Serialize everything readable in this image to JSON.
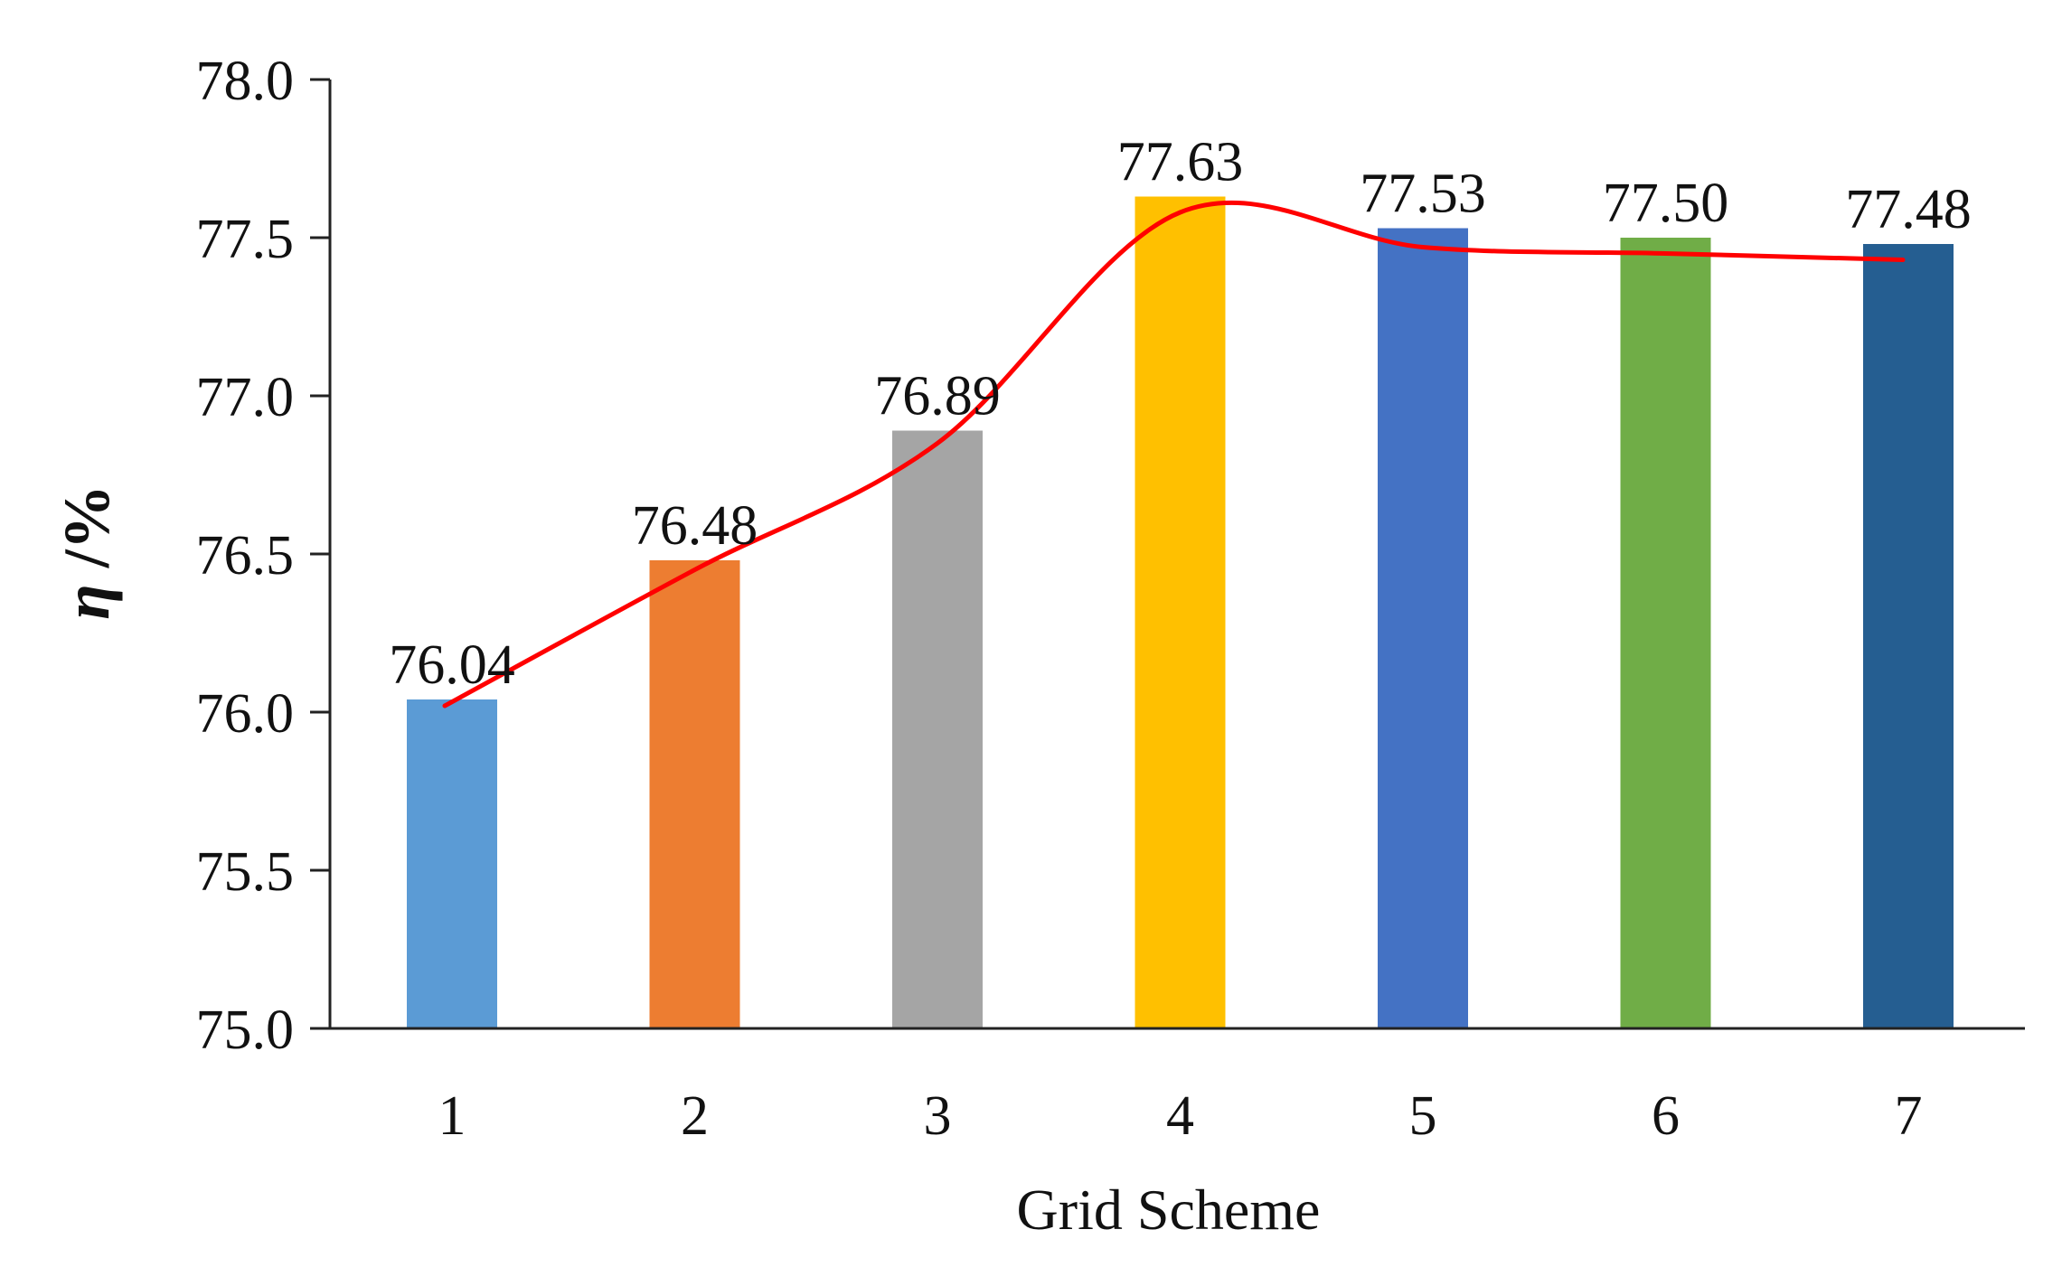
{
  "chart_data": {
    "type": "bar",
    "title": "",
    "xlabel": "Grid Scheme",
    "ylabel_symbol": "η",
    "ylabel_unit": " /%",
    "categories": [
      "1",
      "2",
      "3",
      "4",
      "5",
      "6",
      "7"
    ],
    "values": [
      76.04,
      76.48,
      76.89,
      77.63,
      77.53,
      77.5,
      77.48
    ],
    "value_labels": [
      "76.04",
      "76.48",
      "76.89",
      "77.63",
      "77.53",
      "77.50",
      "77.48"
    ],
    "bar_colors": [
      "#5b9bd5",
      "#ed7d31",
      "#a5a5a5",
      "#ffc000",
      "#4472c4",
      "#70ad47",
      "#255e91"
    ],
    "ylim": [
      75.0,
      78.0
    ],
    "yticks": [
      "75.0",
      "75.5",
      "76.0",
      "76.5",
      "77.0",
      "77.5",
      "78.0"
    ],
    "trend_line": {
      "type": "smooth",
      "color": "#ff0000",
      "values": [
        76.02,
        76.45,
        76.85,
        77.58,
        77.47,
        77.45,
        77.43
      ]
    },
    "grid": false,
    "legend": "none"
  }
}
